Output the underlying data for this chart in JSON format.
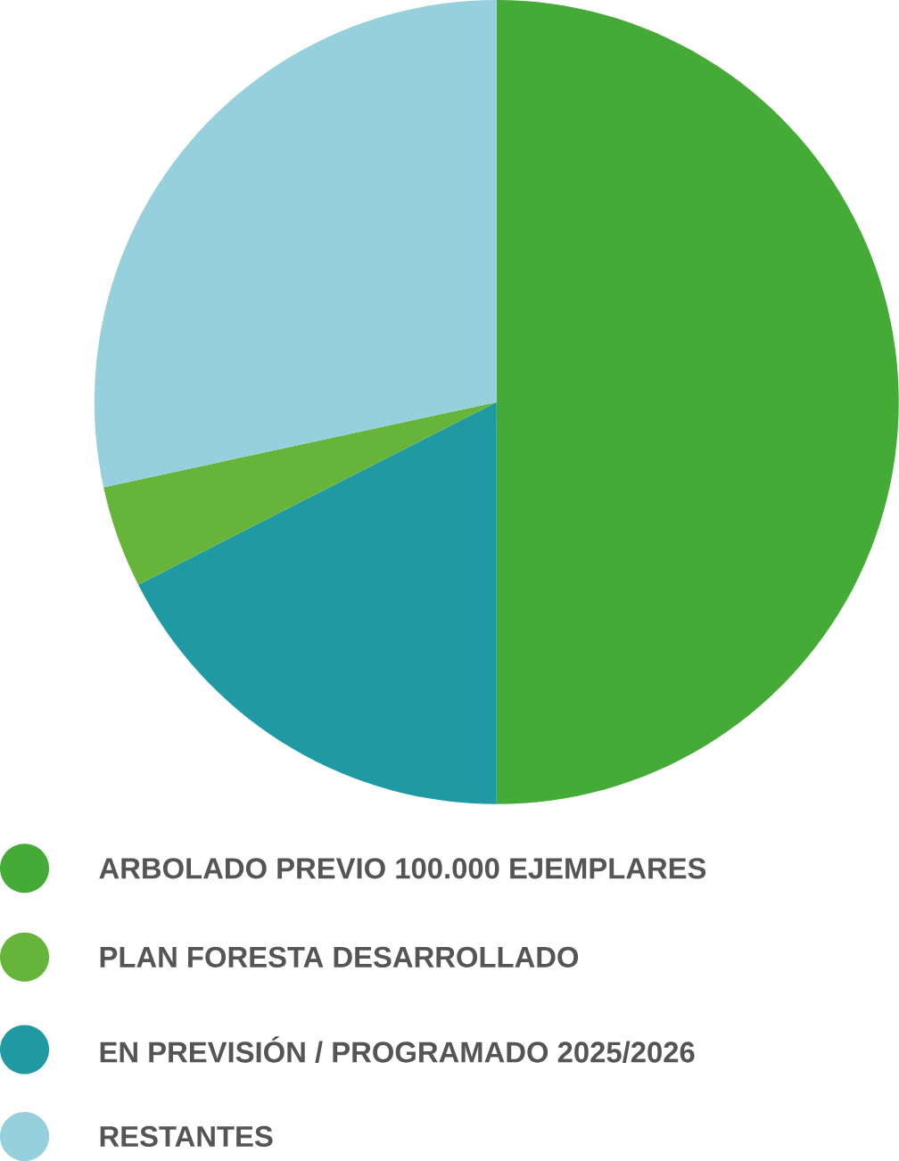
{
  "chart_data": {
    "type": "pie",
    "categories": [
      "ARBOLADO PREVIO 100.000 EJEMPLARES",
      "PLAN FORESTA DESARROLLADO",
      "EN PREVISIÓN / PROGRAMADO 2025/2026",
      "RESTANTES"
    ],
    "values": [
      50,
      4.1,
      17.5,
      28.4
    ],
    "colors": [
      "#43ab36",
      "#66b43a",
      "#1f9aa3",
      "#95d0dc"
    ],
    "legend": "bottom"
  }
}
